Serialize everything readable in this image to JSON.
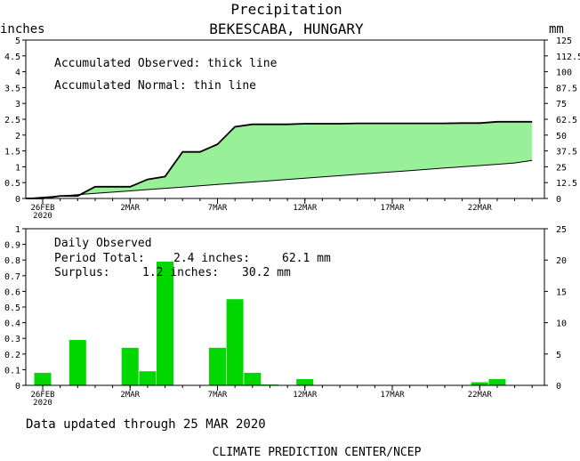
{
  "header": {
    "title": "Precipitation",
    "location": "BEKESCABA, HUNGARY",
    "left_unit": "inches",
    "right_unit": "mm"
  },
  "chart_data": [
    {
      "type": "area",
      "panel": "accumulated",
      "annotations": [
        "Accumulated Observed: thick line",
        "Accumulated Normal: thin line"
      ],
      "dates": [
        "26FEB",
        "27FEB",
        "28FEB",
        "29FEB",
        "1MAR",
        "2MAR",
        "3MAR",
        "4MAR",
        "5MAR",
        "6MAR",
        "7MAR",
        "8MAR",
        "9MAR",
        "10MAR",
        "11MAR",
        "12MAR",
        "13MAR",
        "14MAR",
        "15MAR",
        "16MAR",
        "17MAR",
        "18MAR",
        "19MAR",
        "20MAR",
        "21MAR",
        "22MAR",
        "23MAR",
        "24MAR",
        "25MAR"
      ],
      "x_tick_labels": [
        "26FEB",
        "2MAR",
        "7MAR",
        "12MAR",
        "17MAR",
        "22MAR"
      ],
      "x_year_label": "2020",
      "y_left_ticks": [
        "0",
        "0.5",
        "1",
        "1.5",
        "2",
        "2.5",
        "3",
        "3.5",
        "4",
        "4.5",
        "5"
      ],
      "y_right_ticks": [
        "0",
        "12.5",
        "25",
        "37.5",
        "50",
        "62.5",
        "75",
        "87.5",
        "100",
        "112.5",
        "125"
      ],
      "ylim_inches": [
        0,
        5
      ],
      "ylim_mm": [
        0,
        125
      ],
      "observed_inches": [
        0.0,
        0.08,
        0.08,
        0.37,
        0.37,
        0.37,
        0.6,
        0.69,
        1.47,
        1.47,
        1.71,
        2.26,
        2.34,
        2.34,
        2.34,
        2.36,
        2.36,
        2.36,
        2.37,
        2.37,
        2.37,
        2.37,
        2.37,
        2.37,
        2.38,
        2.38,
        2.42,
        2.42,
        2.42
      ],
      "normal_inches": [
        0.04,
        0.08,
        0.12,
        0.16,
        0.2,
        0.24,
        0.28,
        0.32,
        0.36,
        0.4,
        0.44,
        0.48,
        0.52,
        0.56,
        0.6,
        0.64,
        0.68,
        0.72,
        0.76,
        0.8,
        0.84,
        0.88,
        0.92,
        0.96,
        1.0,
        1.04,
        1.08,
        1.12,
        1.2
      ],
      "colors": {
        "surplus_fill": "#98f098",
        "lines": "#000000"
      }
    },
    {
      "type": "bar",
      "panel": "daily",
      "annotations": {
        "label": "Daily Observed",
        "period_total_label": "Period Total:",
        "period_total_in": "2.4 inches:",
        "period_total_mm": "62.1 mm",
        "surplus_label": "Surplus:",
        "surplus_in": "1.2 inches:",
        "surplus_mm": "30.2 mm"
      },
      "dates": [
        "26FEB",
        "27FEB",
        "28FEB",
        "29FEB",
        "1MAR",
        "2MAR",
        "3MAR",
        "4MAR",
        "5MAR",
        "6MAR",
        "7MAR",
        "8MAR",
        "9MAR",
        "10MAR",
        "11MAR",
        "12MAR",
        "13MAR",
        "14MAR",
        "15MAR",
        "16MAR",
        "17MAR",
        "18MAR",
        "19MAR",
        "20MAR",
        "21MAR",
        "22MAR",
        "23MAR",
        "24MAR",
        "25MAR"
      ],
      "values_inches": [
        0.08,
        0,
        0.29,
        0,
        0,
        0.24,
        0.09,
        0.79,
        0,
        0,
        0.24,
        0.55,
        0.08,
        0.005,
        0,
        0.04,
        0,
        0,
        0,
        0,
        0,
        0,
        0,
        0,
        0,
        0.02,
        0.04,
        0,
        0
      ],
      "x_tick_labels": [
        "26FEB",
        "2MAR",
        "7MAR",
        "12MAR",
        "17MAR",
        "22MAR"
      ],
      "x_year_label": "2020",
      "y_left_ticks": [
        "0",
        "0.1",
        "0.2",
        "0.3",
        "0.4",
        "0.5",
        "0.6",
        "0.7",
        "0.8",
        "0.9",
        "1"
      ],
      "y_right_ticks": [
        "0",
        "5",
        "10",
        "15",
        "20",
        "25"
      ],
      "ylim_inches": [
        0,
        1
      ],
      "ylim_mm": [
        0,
        25
      ],
      "colors": {
        "bars": "#00d800"
      }
    }
  ],
  "footer": {
    "updated": "Data updated through 25 MAR 2020",
    "credit": "CLIMATE PREDICTION CENTER/NCEP"
  }
}
